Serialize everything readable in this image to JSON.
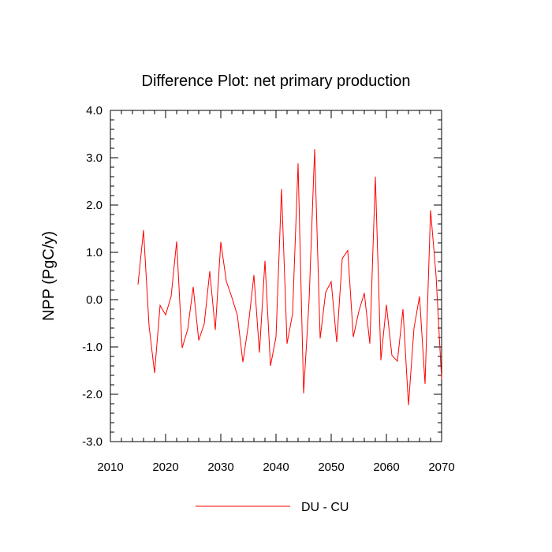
{
  "chart_data": {
    "type": "line",
    "title": "Difference Plot: net primary production",
    "xlabel": "",
    "ylabel": "NPP  (PgC/y)",
    "xlim": [
      2010,
      2070
    ],
    "ylim": [
      -3.0,
      4.0
    ],
    "xticks": [
      2010,
      2020,
      2030,
      2040,
      2050,
      2060,
      2070
    ],
    "xtick_labels": [
      "2010",
      "2020",
      "2030",
      "2040",
      "2050",
      "2060",
      "2070"
    ],
    "yticks": [
      4.0,
      3.0,
      2.0,
      1.0,
      0.0,
      -1.0,
      -2.0,
      -3.0
    ],
    "ytick_labels": [
      "4.0",
      "3.0",
      "2.0",
      "1.0",
      "0.0",
      "-1.0",
      "-2.0",
      "-3.0"
    ],
    "grid": false,
    "legend_position": "bottom-center",
    "series": [
      {
        "name": "DU - CU",
        "color": "#ff0000",
        "x": [
          2015,
          2016,
          2017,
          2018,
          2019,
          2020,
          2021,
          2022,
          2023,
          2024,
          2025,
          2026,
          2027,
          2028,
          2029,
          2030,
          2031,
          2032,
          2033,
          2034,
          2035,
          2036,
          2037,
          2038,
          2039,
          2040,
          2041,
          2042,
          2043,
          2044,
          2045,
          2046,
          2047,
          2048,
          2049,
          2050,
          2051,
          2052,
          2053,
          2054,
          2055,
          2056,
          2057,
          2058,
          2059,
          2060,
          2061,
          2062,
          2063,
          2064,
          2065,
          2066,
          2067,
          2068,
          2069,
          2070
        ],
        "values": [
          0.32,
          1.47,
          -0.55,
          -1.55,
          -0.12,
          -0.32,
          0.07,
          1.23,
          -1.02,
          -0.63,
          0.27,
          -0.86,
          -0.51,
          0.6,
          -0.64,
          1.22,
          0.39,
          0.05,
          -0.33,
          -1.32,
          -0.53,
          0.52,
          -1.12,
          0.82,
          -1.4,
          -0.79,
          2.34,
          -0.93,
          -0.3,
          2.88,
          -1.98,
          0.0,
          3.18,
          -0.82,
          0.16,
          0.38,
          -0.9,
          0.87,
          1.04,
          -0.79,
          -0.25,
          0.14,
          -0.93,
          2.6,
          -1.28,
          -0.11,
          -1.18,
          -1.3,
          -0.2,
          -2.23,
          -0.6,
          0.07,
          -1.78,
          1.89,
          0.5,
          -1.68
        ]
      }
    ]
  }
}
